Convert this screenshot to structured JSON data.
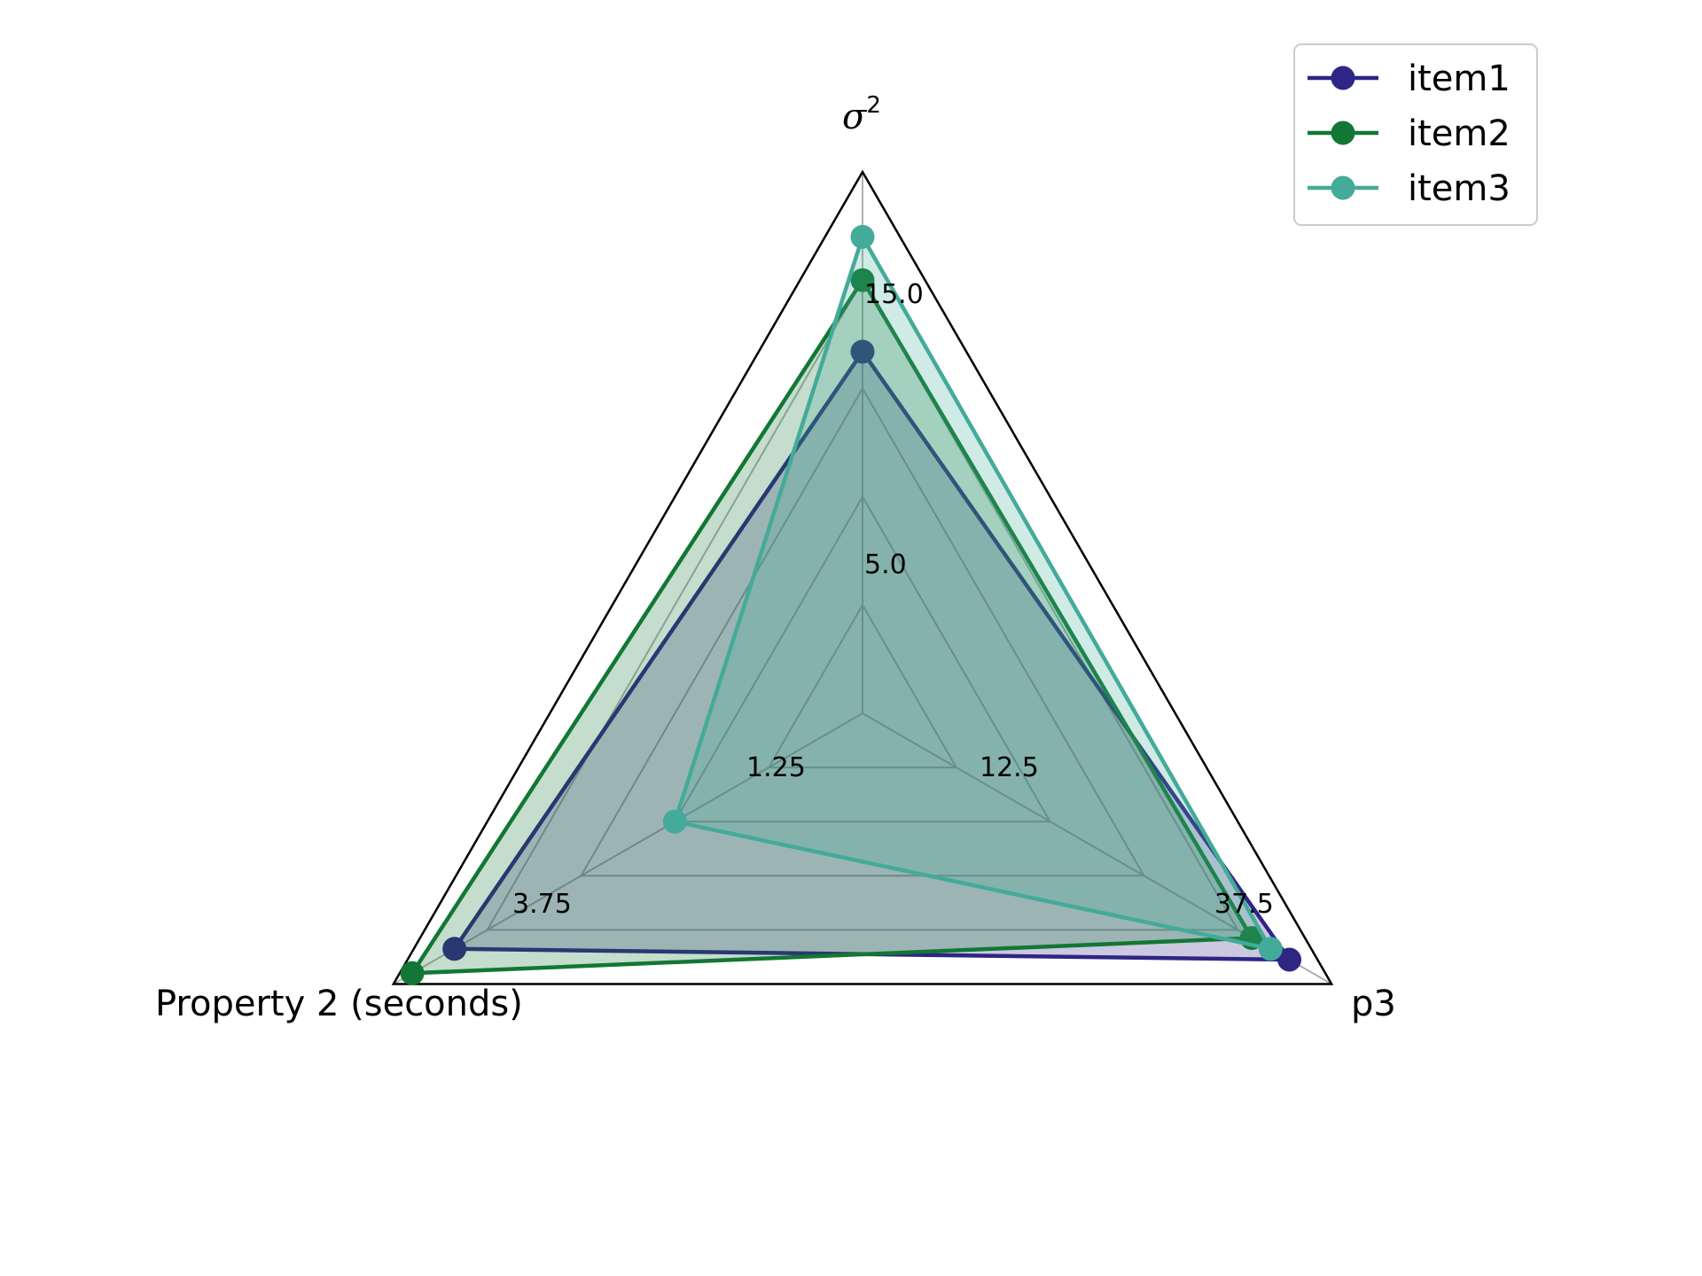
{
  "chart_data": {
    "type": "radar",
    "axes": [
      {
        "name_main": "σ",
        "name_sup": "2",
        "ticks": [
          "5.0",
          "15.0"
        ]
      },
      {
        "name": "p3",
        "ticks": [
          "12.5",
          "37.5"
        ]
      },
      {
        "name": "Property 2 (seconds)",
        "ticks": [
          "1.25",
          "3.75"
        ]
      }
    ],
    "series": [
      {
        "name": "item1",
        "color": "#2e2585",
        "values": [
          16.7,
          0.91,
          0.87
        ]
      },
      {
        "name": "item2",
        "color": "#127734",
        "values": [
          20.0,
          0.83,
          0.96
        ]
      },
      {
        "name": "item3",
        "color": "#44aa99",
        "values": [
          22.0,
          0.87,
          0.4
        ]
      }
    ],
    "grid": true,
    "legend_position": "top-right",
    "colors": {
      "frame": "#000000",
      "grid": "#b0b0b0"
    }
  }
}
